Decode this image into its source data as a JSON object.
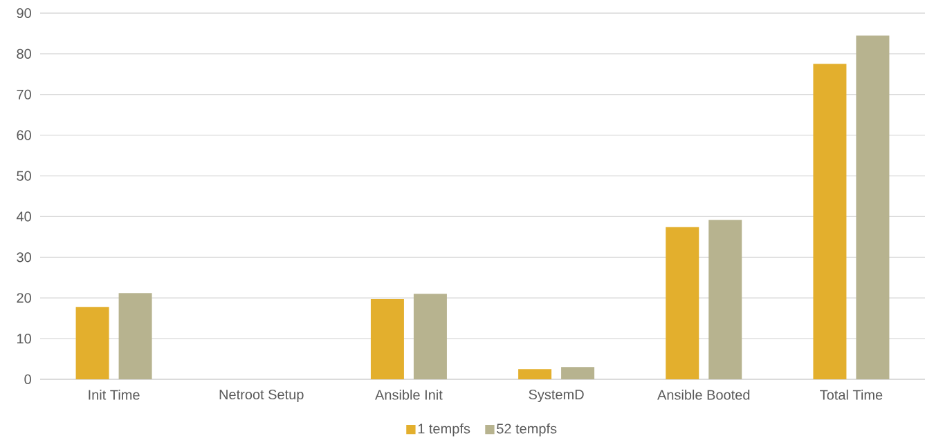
{
  "chart_data": {
    "type": "bar",
    "categories": [
      "Init Time",
      "Netroot Setup",
      "Ansible Init",
      "SystemD",
      "Ansible Booted",
      "Total Time"
    ],
    "series": [
      {
        "name": "1 tempfs",
        "color": "#e3af2d",
        "values": [
          17.8,
          0,
          19.7,
          2.5,
          37.4,
          77.5
        ]
      },
      {
        "name": "52 tempfs",
        "color": "#b7b38f",
        "values": [
          21.2,
          0,
          21.0,
          3.0,
          39.2,
          84.5
        ]
      }
    ],
    "ylim": [
      0,
      90
    ],
    "yticks": [
      0,
      10,
      20,
      30,
      40,
      50,
      60,
      70,
      80,
      90
    ],
    "grid": "y",
    "legend": "bottom"
  }
}
